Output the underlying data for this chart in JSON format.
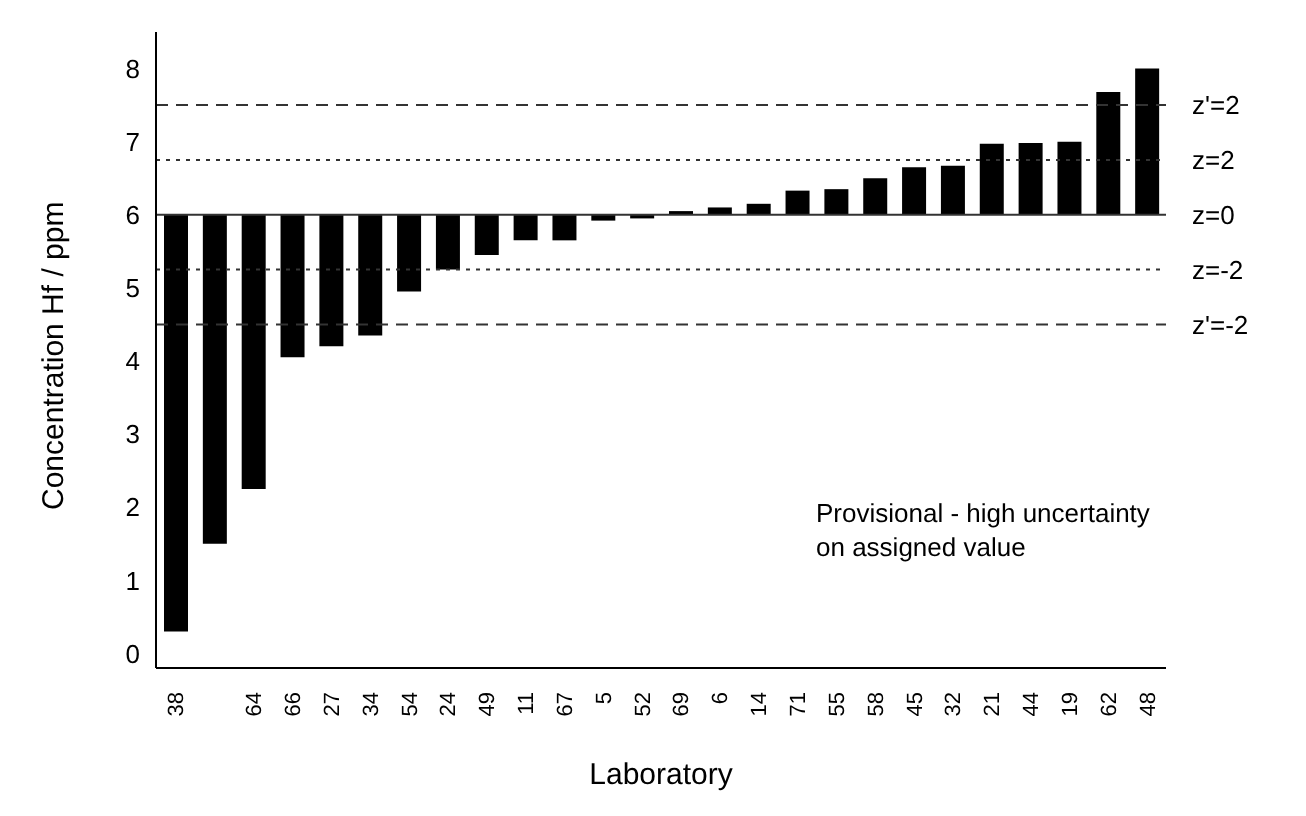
{
  "chart_data": {
    "type": "bar",
    "xlabel": "Laboratory",
    "ylabel": "Concentration Hf / ppm",
    "categories": [
      "38",
      null,
      "64",
      "66",
      "27",
      "34",
      "54",
      "24",
      "49",
      "11",
      "67",
      "5",
      "52",
      "69",
      "6",
      "14",
      "71",
      "55",
      "58",
      "45",
      "32",
      "21",
      "44",
      "19",
      "62",
      "48"
    ],
    "base": [
      6,
      6,
      6,
      6,
      6,
      6,
      6,
      6,
      6,
      6,
      6,
      6,
      6,
      6,
      6,
      6,
      6,
      6,
      6,
      6,
      6,
      6,
      6,
      6,
      6,
      6
    ],
    "values": [
      -5.7,
      -4.5,
      -3.75,
      -1.95,
      -1.8,
      -1.65,
      -1.05,
      -0.75,
      -0.55,
      -0.35,
      -0.35,
      -0.08,
      -0.05,
      0.05,
      0.1,
      0.15,
      0.33,
      0.35,
      0.5,
      0.65,
      0.67,
      0.97,
      0.98,
      1.0,
      1.68,
      2.0
    ],
    "color": "#000000",
    "ylim": [
      -0.2,
      8.5
    ],
    "yticks": [
      0,
      1,
      2,
      3,
      4,
      5,
      6,
      7,
      8
    ],
    "grid": false,
    "ref_lines": [
      {
        "axis": "y",
        "value": 7.5,
        "line_style": "dashed",
        "color": "#333333"
      },
      {
        "axis": "y",
        "value": 6.75,
        "line_style": "dotted",
        "color": "#333333"
      },
      {
        "axis": "y",
        "value": 6,
        "line_style": "solid",
        "color": "#333333"
      },
      {
        "axis": "y",
        "value": 5.25,
        "line_style": "dotted",
        "color": "#333333"
      },
      {
        "axis": "y",
        "value": 4.5,
        "line_style": "dashed",
        "color": "#333333"
      }
    ],
    "annotations": [
      "Provisional - high uncertainty on assigned value",
      "z'=2",
      "z=2",
      "z=0",
      "z=-2",
      "z'=-2"
    ]
  }
}
